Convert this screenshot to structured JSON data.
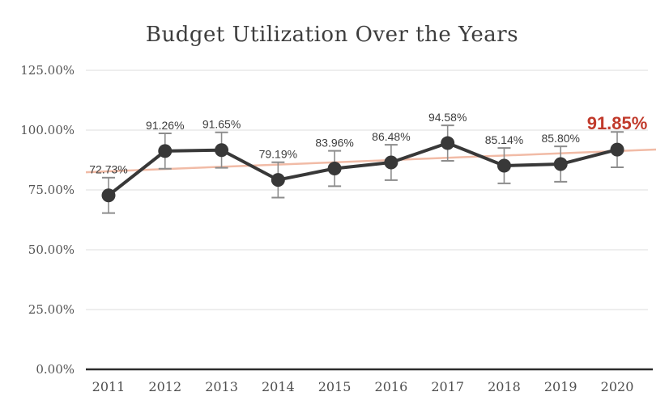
{
  "chart_data": {
    "type": "line",
    "title": "Budget Utilization Over the Years",
    "categories": [
      "2011",
      "2012",
      "2013",
      "2014",
      "2015",
      "2016",
      "2017",
      "2018",
      "2019",
      "2020"
    ],
    "series": [
      {
        "name": "Budget Utilization",
        "values": [
          72.73,
          91.26,
          91.65,
          79.19,
          83.96,
          86.48,
          94.58,
          85.14,
          85.8,
          91.85
        ]
      }
    ],
    "data_labels": [
      "72.73%",
      "91.26%",
      "91.65%",
      "79.19%",
      "83.96%",
      "86.48%",
      "94.58%",
      "85.14%",
      "85.80%",
      "91.85%"
    ],
    "highlight_last_label": true,
    "y_ticks": [
      {
        "value": 0,
        "label": "0.00%"
      },
      {
        "value": 25,
        "label": "25.00%"
      },
      {
        "value": 50,
        "label": "50.00%"
      },
      {
        "value": 75,
        "label": "75.00%"
      },
      {
        "value": 100,
        "label": "100.00%"
      },
      {
        "value": 125,
        "label": "125.00%"
      }
    ],
    "ylim": [
      0,
      125
    ],
    "grid": true,
    "legend": false,
    "xlabel": "",
    "ylabel": "",
    "error_bar_pct": 7.4,
    "trendline": {
      "start_value": 82.4,
      "end_value": 91.9
    },
    "colors": {
      "series_line": "#383838",
      "marker": "#383838",
      "trendline": "#f1bba6",
      "error_bar": "#8c8c8c",
      "gridline": "#dcdcdc",
      "axis_line": "#2b2b2b",
      "data_label": "#3d3d3d",
      "highlight_label": "#c13a2b",
      "tick_label": "#555555",
      "title": "#3d3d3d"
    }
  }
}
